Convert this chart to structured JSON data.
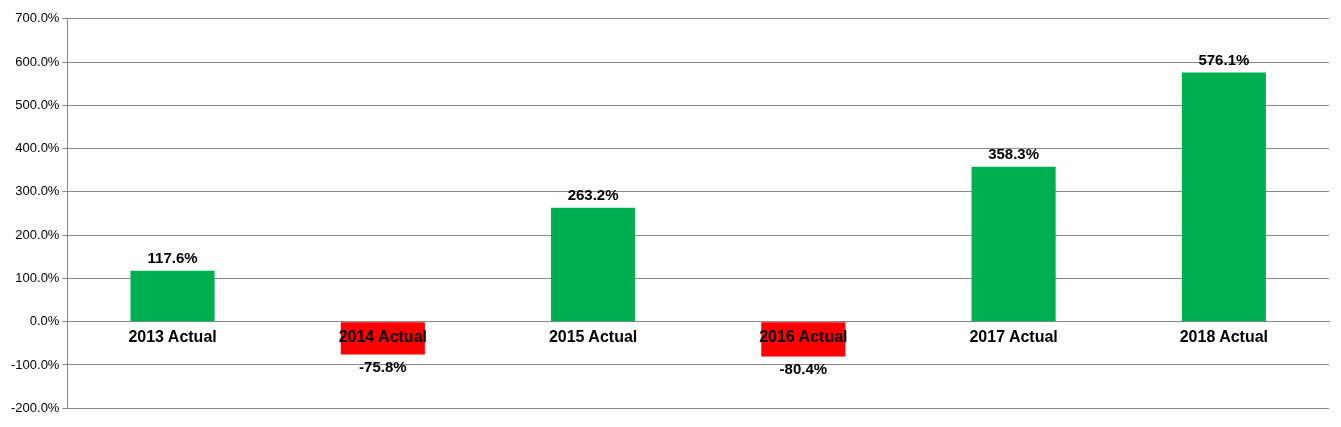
{
  "chart_data": {
    "type": "bar",
    "categories": [
      "2013 Actual",
      "2014 Actual",
      "2015 Actual",
      "2016 Actual",
      "2017 Actual",
      "2018 Actual"
    ],
    "values": [
      117.6,
      -75.8,
      263.2,
      -80.4,
      358.3,
      576.1
    ],
    "colors": [
      "#00b050",
      "#ff0000",
      "#00b050",
      "#ff0000",
      "#00b050",
      "#00b050"
    ],
    "value_labels": [
      "117.6%",
      "-75.8%",
      "263.2%",
      "-80.4%",
      "358.3%",
      "576.1%"
    ],
    "ylim": [
      -200,
      700
    ],
    "yticks": [
      {
        "value": -200,
        "label": "-200.0%"
      },
      {
        "value": -100,
        "label": "-100.0%"
      },
      {
        "value": 0,
        "label": "0.0%"
      },
      {
        "value": 100,
        "label": "100.0%"
      },
      {
        "value": 200,
        "label": "200.0%"
      },
      {
        "value": 300,
        "label": "300.0%"
      },
      {
        "value": 400,
        "label": "400.0%"
      },
      {
        "value": 500,
        "label": "500.0%"
      },
      {
        "value": 600,
        "label": "600.0%"
      },
      {
        "value": 700,
        "label": "700.0%"
      }
    ],
    "grid": "y",
    "legend": false
  }
}
